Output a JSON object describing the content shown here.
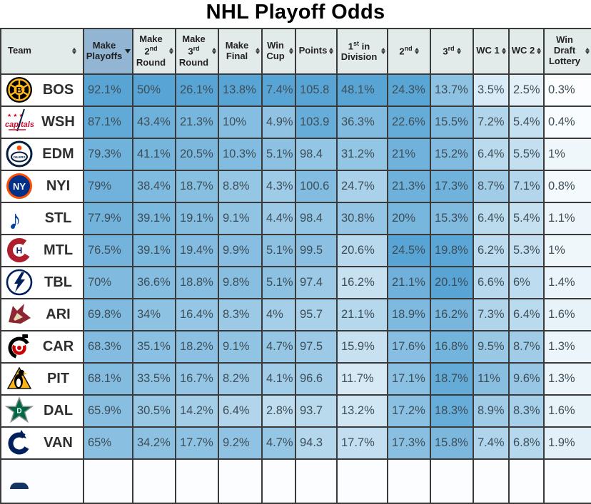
{
  "title": "NHL Playoff Odds",
  "table": {
    "columns": [
      {
        "id": "team",
        "parts": [
          {
            "t": "Team"
          }
        ],
        "sort": "both",
        "sorted": false
      },
      {
        "id": "make-playoffs",
        "parts": [
          {
            "t": "Make Playoffs"
          }
        ],
        "sort": "desc",
        "sorted": true
      },
      {
        "id": "make-2nd-round",
        "parts": [
          {
            "t": "Make 2"
          },
          {
            "t": "nd",
            "sup": true
          },
          {
            "t": " Round"
          }
        ],
        "sort": "both",
        "sorted": false
      },
      {
        "id": "make-3rd-round",
        "parts": [
          {
            "t": "Make 3"
          },
          {
            "t": "rd",
            "sup": true
          },
          {
            "t": " Round"
          }
        ],
        "sort": "both",
        "sorted": false
      },
      {
        "id": "make-final",
        "parts": [
          {
            "t": "Make Final"
          }
        ],
        "sort": "both",
        "sorted": false
      },
      {
        "id": "win-cup",
        "parts": [
          {
            "t": "Win Cup"
          }
        ],
        "sort": "both",
        "sorted": false
      },
      {
        "id": "points",
        "parts": [
          {
            "t": "Points"
          }
        ],
        "sort": "both",
        "sorted": false
      },
      {
        "id": "first-in-division",
        "parts": [
          {
            "t": "1"
          },
          {
            "t": "st",
            "sup": true
          },
          {
            "t": " in Division"
          }
        ],
        "sort": "both",
        "sorted": false
      },
      {
        "id": "second",
        "parts": [
          {
            "t": "2"
          },
          {
            "t": "nd",
            "sup": true
          }
        ],
        "sort": "both",
        "sorted": false
      },
      {
        "id": "third",
        "parts": [
          {
            "t": "3"
          },
          {
            "t": "rd",
            "sup": true
          }
        ],
        "sort": "both",
        "sorted": false
      },
      {
        "id": "wc1",
        "parts": [
          {
            "t": "WC 1"
          }
        ],
        "sort": "both",
        "sorted": false
      },
      {
        "id": "wc2",
        "parts": [
          {
            "t": "WC 2"
          }
        ],
        "sort": "both",
        "sorted": false
      },
      {
        "id": "win-draft-lottery",
        "parts": [
          {
            "t": "Win Draft Lottery"
          }
        ],
        "sort": "both",
        "sorted": false
      }
    ],
    "rows": [
      {
        "team": "BOS",
        "values": [
          "92.1%",
          "50%",
          "26.1%",
          "13.8%",
          "7.4%",
          "105.8",
          "48.1%",
          "24.3%",
          "13.7%",
          "3.5%",
          "2.5%",
          "0.3%"
        ]
      },
      {
        "team": "WSH",
        "values": [
          "87.1%",
          "43.4%",
          "21.3%",
          "10%",
          "4.9%",
          "103.9",
          "36.3%",
          "22.6%",
          "15.5%",
          "7.2%",
          "5.4%",
          "0.4%"
        ]
      },
      {
        "team": "EDM",
        "values": [
          "79.3%",
          "41.1%",
          "20.5%",
          "10.3%",
          "5.1%",
          "98.4",
          "31.2%",
          "21%",
          "15.2%",
          "6.4%",
          "5.5%",
          "1%"
        ]
      },
      {
        "team": "NYI",
        "values": [
          "79%",
          "38.4%",
          "18.7%",
          "8.8%",
          "4.3%",
          "100.6",
          "24.7%",
          "21.3%",
          "17.3%",
          "8.7%",
          "7.1%",
          "0.8%"
        ]
      },
      {
        "team": "STL",
        "values": [
          "77.9%",
          "39.1%",
          "19.1%",
          "9.1%",
          "4.4%",
          "98.4",
          "30.8%",
          "20%",
          "15.3%",
          "6.4%",
          "5.4%",
          "1.1%"
        ]
      },
      {
        "team": "MTL",
        "values": [
          "76.5%",
          "39.1%",
          "19.4%",
          "9.9%",
          "5.1%",
          "99.5",
          "20.6%",
          "24.5%",
          "19.8%",
          "6.2%",
          "5.3%",
          "1%"
        ]
      },
      {
        "team": "TBL",
        "values": [
          "70%",
          "36.6%",
          "18.8%",
          "9.8%",
          "5.1%",
          "97.4",
          "16.2%",
          "21.1%",
          "20.1%",
          "6.6%",
          "6%",
          "1.4%"
        ]
      },
      {
        "team": "ARI",
        "values": [
          "69.8%",
          "34%",
          "16.4%",
          "8.3%",
          "4%",
          "95.7",
          "21.1%",
          "18.9%",
          "16.2%",
          "7.3%",
          "6.4%",
          "1.6%"
        ]
      },
      {
        "team": "CAR",
        "values": [
          "68.3%",
          "35.1%",
          "18.2%",
          "9.1%",
          "4.7%",
          "97.5",
          "15.9%",
          "17.6%",
          "16.8%",
          "9.5%",
          "8.7%",
          "1.3%"
        ]
      },
      {
        "team": "PIT",
        "values": [
          "68.1%",
          "33.5%",
          "16.7%",
          "8.2%",
          "4.1%",
          "96.6",
          "11.7%",
          "17.1%",
          "18.7%",
          "11%",
          "9.6%",
          "1.3%"
        ]
      },
      {
        "team": "DAL",
        "values": [
          "65.9%",
          "30.5%",
          "14.2%",
          "6.4%",
          "2.8%",
          "93.7",
          "13.2%",
          "17.2%",
          "18.3%",
          "8.9%",
          "8.3%",
          "1.6%"
        ]
      },
      {
        "team": "VAN",
        "values": [
          "65%",
          "34.2%",
          "17.7%",
          "9.2%",
          "4.7%",
          "94.3",
          "17.7%",
          "17.3%",
          "15.8%",
          "7.4%",
          "6.8%",
          "1.9%"
        ]
      }
    ]
  },
  "heat": {
    "scale_max": [
      92.1,
      50,
      26.1,
      13.8,
      7.4,
      null,
      48.1,
      24.5,
      20.1,
      15.5,
      15.5,
      11.5
    ],
    "points_min": 85,
    "points_max": 105.8,
    "color_low": "#ffffff",
    "color_high": "#58a5d5"
  },
  "colors": {
    "header_bg": "#e3eaea",
    "sorted_header_bg": "#92b5d3",
    "grid_border": "#3a3a3a",
    "cell_text": "#3e4e58"
  },
  "logos": {
    "BOS": {
      "kind": "bruins",
      "primary": "#000000",
      "secondary": "#FFB81C",
      "label": "B"
    },
    "WSH": {
      "kind": "wordmark",
      "primary": "#C8102E",
      "secondary": "#041E42",
      "label": "capitals"
    },
    "EDM": {
      "kind": "ringdrop",
      "primary": "#041E42",
      "secondary": "#FF4C00",
      "label": "OILERS"
    },
    "NYI": {
      "kind": "disc",
      "primary": "#003087",
      "secondary": "#FC4C02",
      "label": "NY"
    },
    "STL": {
      "kind": "note",
      "primary": "#0546A0",
      "secondary": "#FCB514",
      "label": "♪"
    },
    "MTL": {
      "kind": "ch",
      "primary": "#AF1E2D",
      "secondary": "#192168",
      "label": "H"
    },
    "TBL": {
      "kind": "bolt",
      "primary": "#00205B",
      "secondary": "#FFFFFF",
      "label": ""
    },
    "ARI": {
      "kind": "coyote",
      "primary": "#8C2633",
      "secondary": "#E2D6B5",
      "label": ""
    },
    "CAR": {
      "kind": "swirl",
      "primary": "#CC0000",
      "secondary": "#000000",
      "label": ""
    },
    "PIT": {
      "kind": "penguin",
      "primary": "#FCB514",
      "secondary": "#000000",
      "label": ""
    },
    "DAL": {
      "kind": "star",
      "primary": "#006847",
      "secondary": "#8F8F8C",
      "label": "D"
    },
    "VAN": {
      "kind": "orca",
      "primary": "#00205B",
      "secondary": "#008852",
      "label": ""
    }
  }
}
